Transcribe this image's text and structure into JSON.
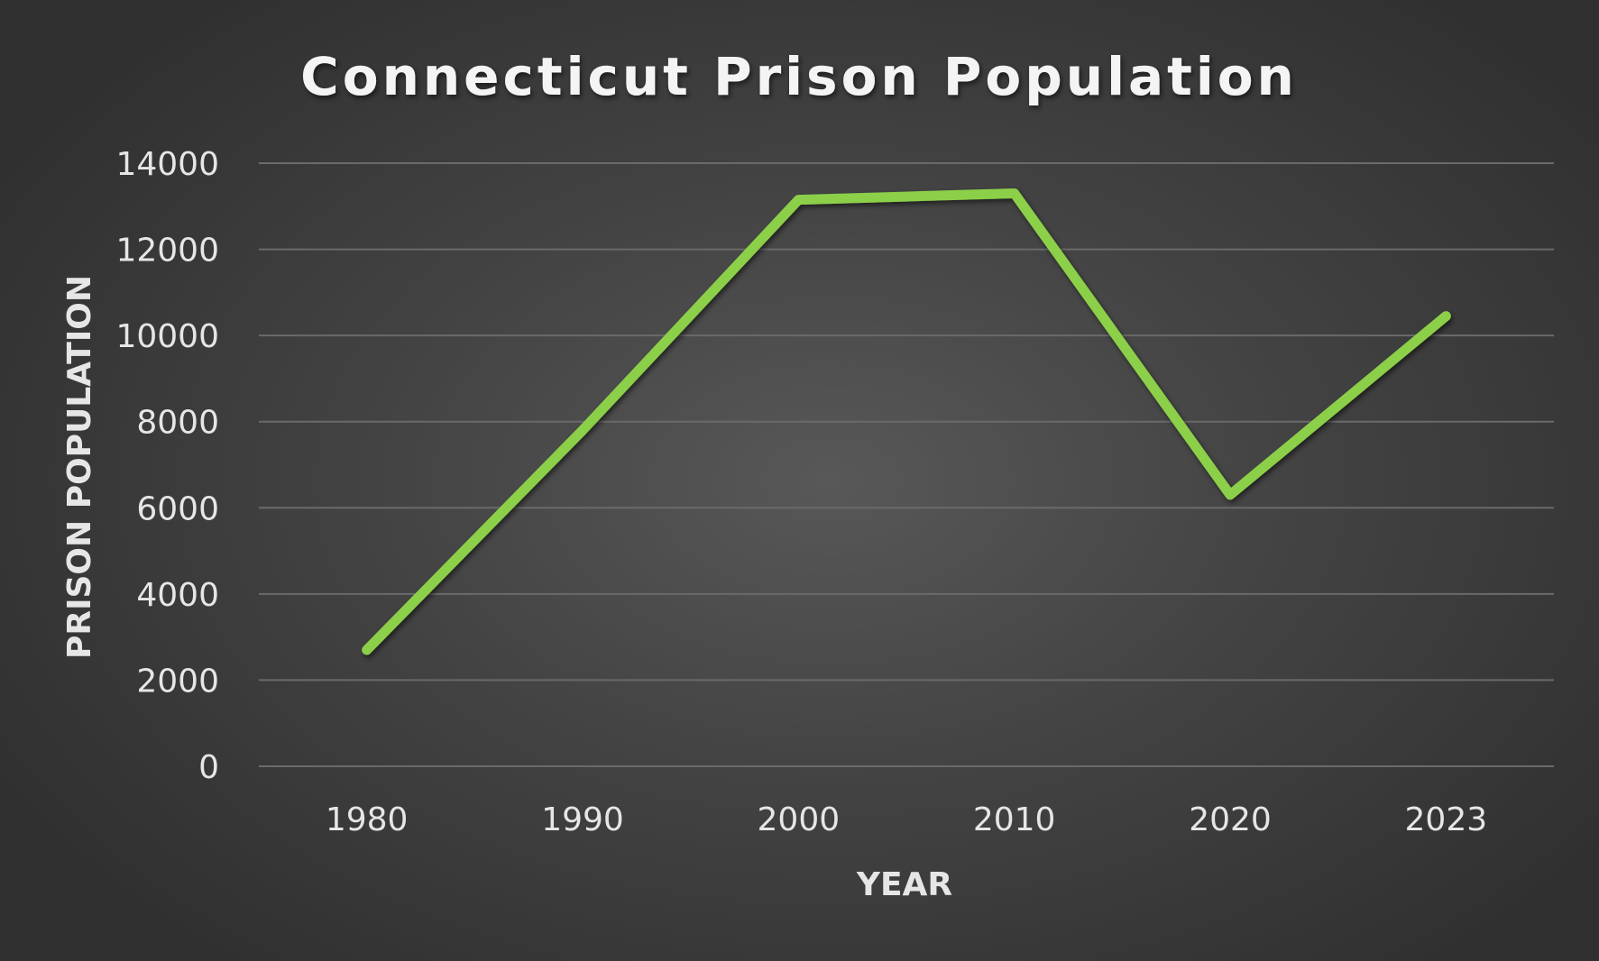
{
  "chart_data": {
    "type": "line",
    "title": "Connecticut Prison Population",
    "xlabel": "YEAR",
    "ylabel": "PRISON POPULATION",
    "categories": [
      "1980",
      "1990",
      "2000",
      "2010",
      "2020",
      "2023"
    ],
    "series": [
      {
        "values": [
          2700,
          7800,
          13150,
          13300,
          6300,
          10450
        ]
      }
    ],
    "ylim": [
      0,
      14000
    ],
    "yticks": [
      0,
      2000,
      4000,
      6000,
      8000,
      10000,
      12000,
      14000
    ],
    "grid": true,
    "legend": "none",
    "colors": {
      "line": "#8ccf4a",
      "grid": "#6a6a6a",
      "text": "#e6e6e6",
      "title": "#f4f4f4"
    }
  }
}
